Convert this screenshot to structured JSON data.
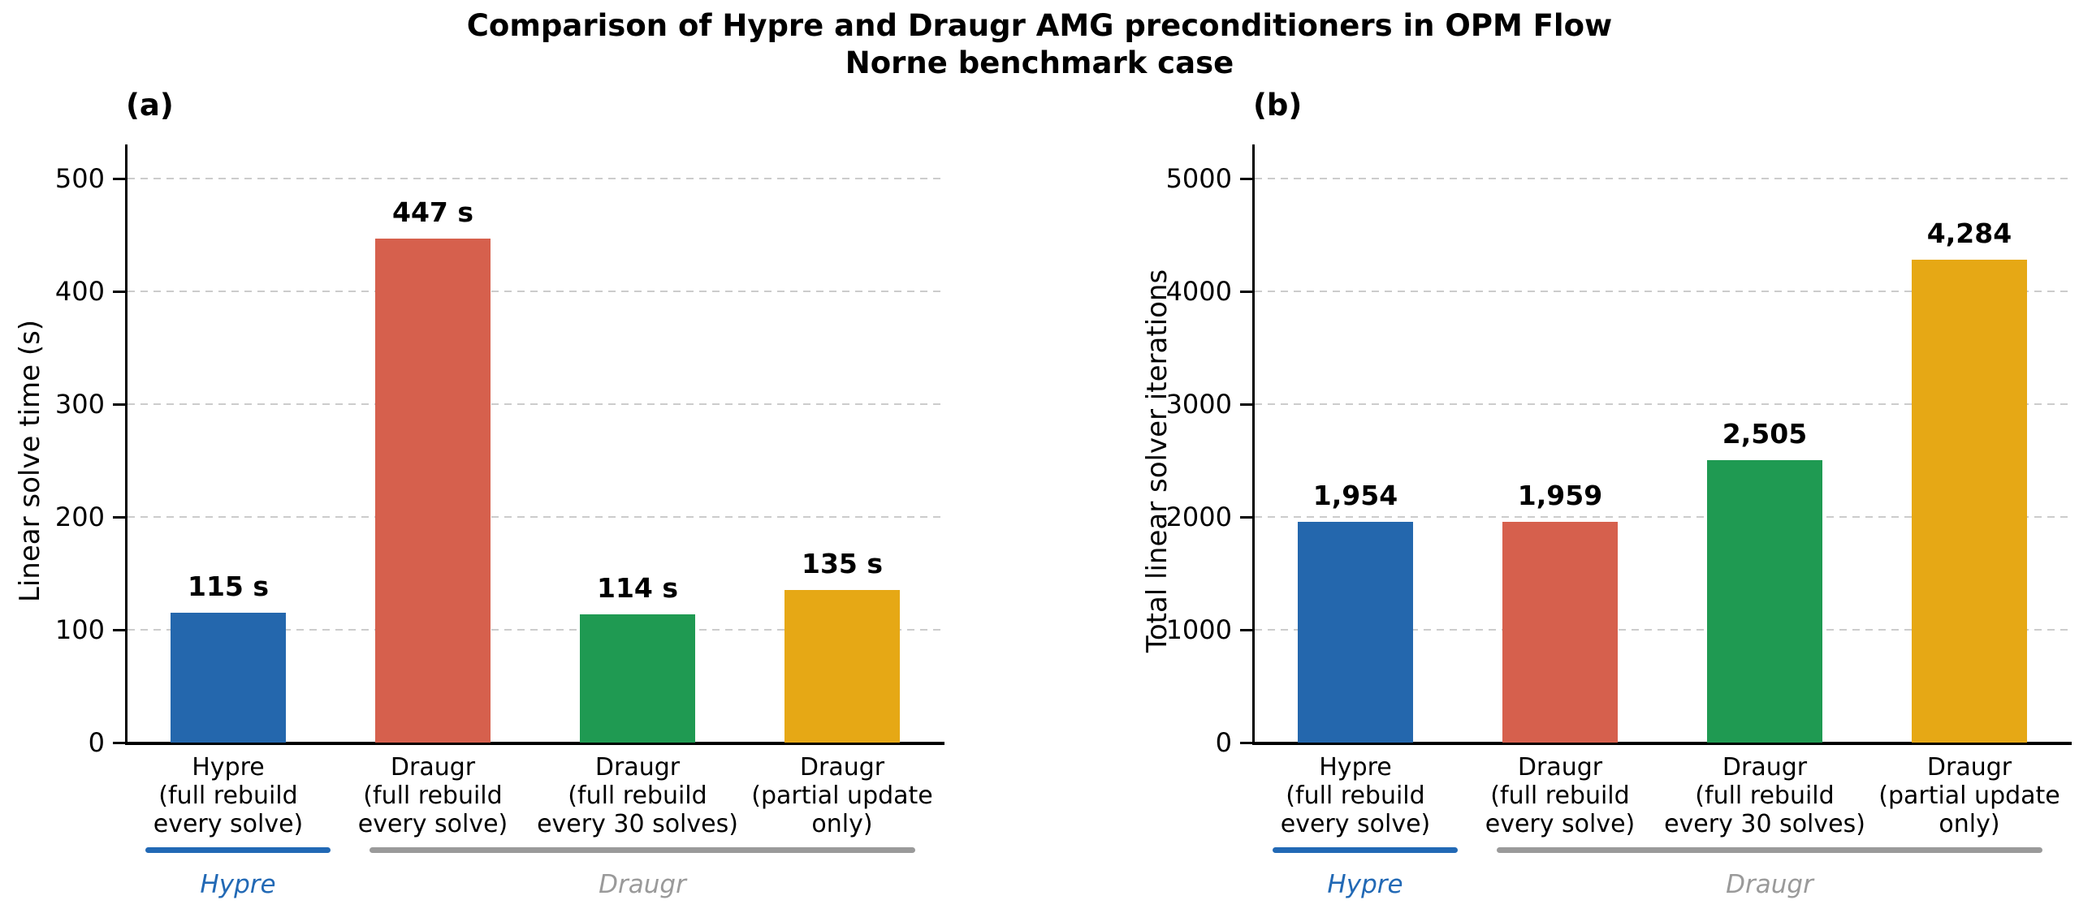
{
  "title": {
    "line1": "Comparison of Hypre and Draugr AMG preconditioners in OPM Flow",
    "line2": "Norne benchmark case"
  },
  "colors": {
    "bar_blue": "#2467ad",
    "bar_red": "#d6604d",
    "bar_green": "#1f9a52",
    "bar_gold": "#e6a815",
    "hypre_annotation": "#2269b5",
    "draugr_annotation": "#9a9a9a",
    "axis": "#000000",
    "grid": "#cccccc"
  },
  "chart_data": [
    {
      "type": "bar",
      "panel_label": "(a)",
      "ylabel": "Linear solve time (s)",
      "categories": [
        [
          "Hypre",
          "(full rebuild",
          "every solve)"
        ],
        [
          "Draugr",
          "(full rebuild",
          "every solve)"
        ],
        [
          "Draugr",
          "(full rebuild",
          "every 30 solves)"
        ],
        [
          "Draugr",
          "(partial update",
          "only)"
        ]
      ],
      "values": [
        115,
        447,
        114,
        135
      ],
      "value_labels": [
        "115 s",
        "447 s",
        "114 s",
        "135 s"
      ],
      "bar_colors": [
        "#2467ad",
        "#d6604d",
        "#1f9a52",
        "#e6a815"
      ],
      "yticks": [
        0,
        100,
        200,
        300,
        400,
        500
      ],
      "ylim": [
        0,
        530
      ],
      "grid": "horizontal-dashed",
      "legend_position": "none"
    },
    {
      "type": "bar",
      "panel_label": "(b)",
      "ylabel": "Total linear solver iterations",
      "categories": [
        [
          "Hypre",
          "(full rebuild",
          "every solve)"
        ],
        [
          "Draugr",
          "(full rebuild",
          "every solve)"
        ],
        [
          "Draugr",
          "(full rebuild",
          "every 30 solves)"
        ],
        [
          "Draugr",
          "(partial update",
          "only)"
        ]
      ],
      "values": [
        1954,
        1959,
        2505,
        4284
      ],
      "value_labels": [
        "1,954",
        "1,959",
        "2,505",
        "4,284"
      ],
      "bar_colors": [
        "#2467ad",
        "#d6604d",
        "#1f9a52",
        "#e6a815"
      ],
      "yticks": [
        0,
        1000,
        2000,
        3000,
        4000,
        5000
      ],
      "ylim": [
        0,
        5300
      ],
      "grid": "horizontal-dashed",
      "legend_position": "none"
    }
  ],
  "group_annotations": [
    {
      "label": "Hypre",
      "slot_start": 0,
      "slot_end": 0,
      "color": "#2269b5"
    },
    {
      "label": "Draugr",
      "slot_start": 1,
      "slot_end": 3,
      "color": "#9a9a9a"
    }
  ]
}
